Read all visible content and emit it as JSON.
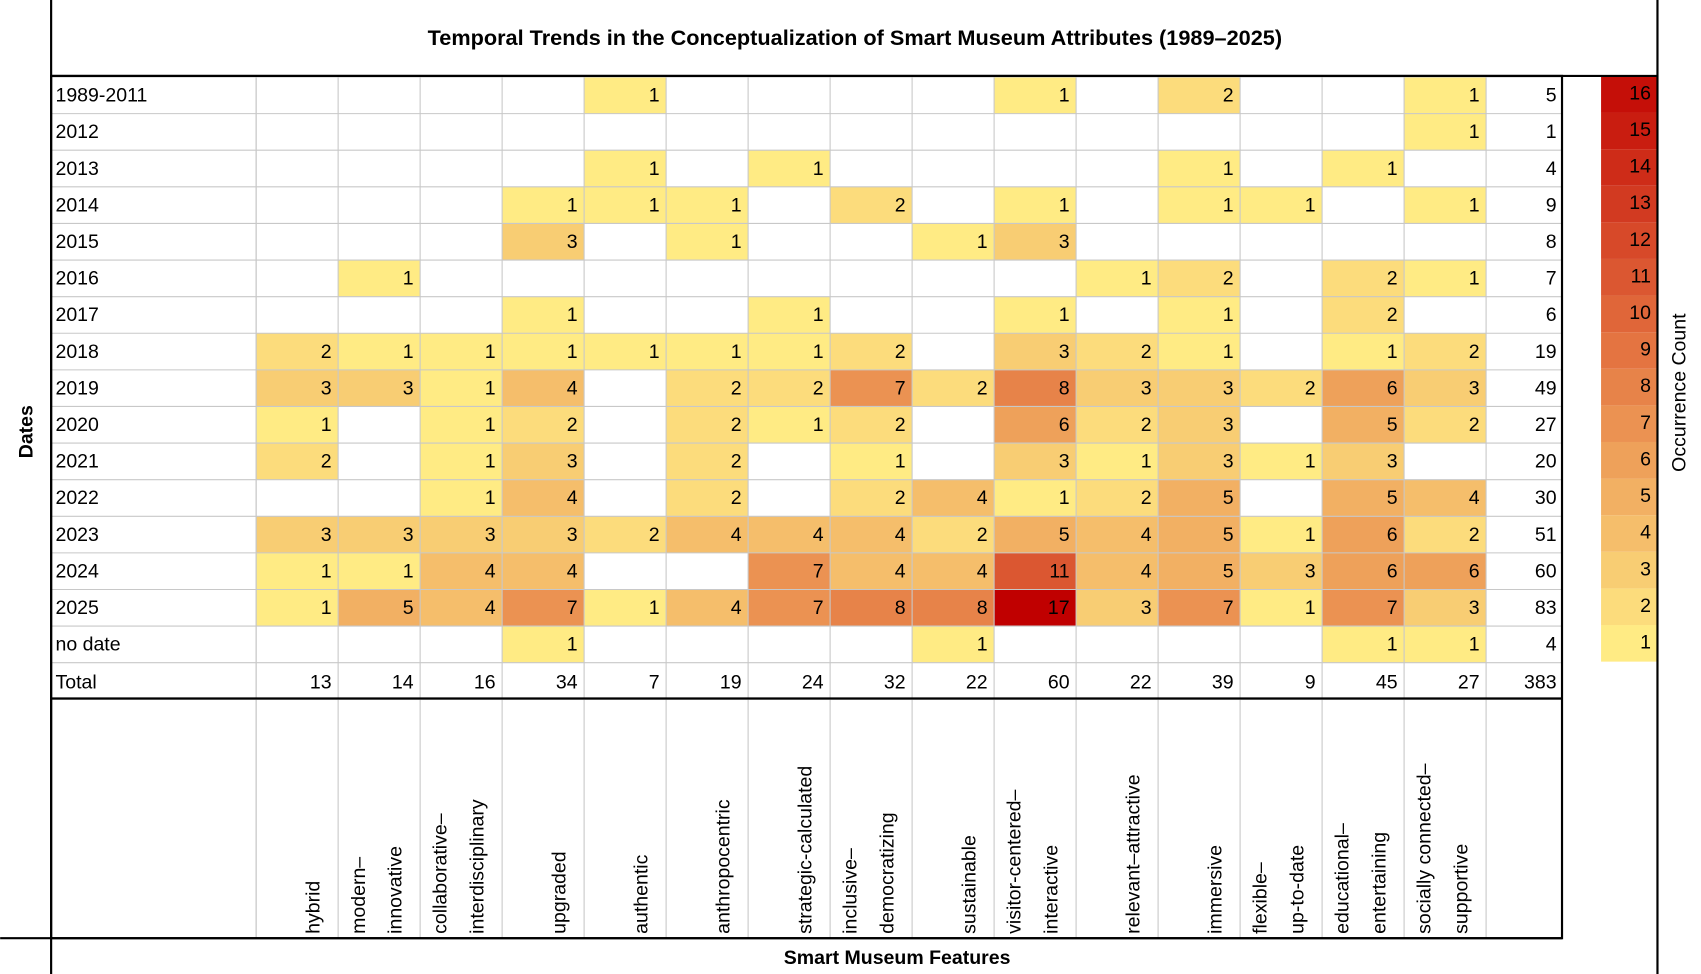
{
  "chart_data": {
    "type": "heatmap",
    "title": "Temporal Trends in the Conceptualization of Smart Museum Attributes (1989–2025)",
    "y_label": "Dates",
    "x_label": "Smart Museum Features",
    "colorbar_label": "Occurrence Count",
    "total_label": "Total",
    "rows": [
      "1989-2011",
      "2012",
      "2013",
      "2014",
      "2015",
      "2016",
      "2017",
      "2018",
      "2019",
      "2020",
      "2021",
      "2022",
      "2023",
      "2024",
      "2025",
      "no date"
    ],
    "columns": [
      [
        "hybrid"
      ],
      [
        "modern–",
        "innovative"
      ],
      [
        "collaborative–",
        "interdisciplinary"
      ],
      [
        "upgraded"
      ],
      [
        "authentic"
      ],
      [
        "anthropocentric"
      ],
      [
        "strategic-calculated"
      ],
      [
        "inclusive–",
        "democratizing"
      ],
      [
        "sustainable"
      ],
      [
        "visitor-centered–",
        "interactive"
      ],
      [
        "relevant–attractive"
      ],
      [
        "immersive"
      ],
      [
        "flexible–",
        "up-to-date"
      ],
      [
        "educational–",
        "entertaining"
      ],
      [
        "socially connected–",
        "supportive"
      ]
    ],
    "values": [
      [
        null,
        null,
        null,
        null,
        1,
        null,
        null,
        null,
        null,
        1,
        null,
        2,
        null,
        null,
        1
      ],
      [
        null,
        null,
        null,
        null,
        null,
        null,
        null,
        null,
        null,
        null,
        null,
        null,
        null,
        null,
        1
      ],
      [
        null,
        null,
        null,
        null,
        1,
        null,
        1,
        null,
        null,
        null,
        null,
        1,
        null,
        1,
        null
      ],
      [
        null,
        null,
        null,
        1,
        1,
        1,
        null,
        2,
        null,
        1,
        null,
        1,
        1,
        null,
        1
      ],
      [
        null,
        null,
        null,
        3,
        null,
        1,
        null,
        null,
        1,
        3,
        null,
        null,
        null,
        null,
        null
      ],
      [
        null,
        1,
        null,
        null,
        null,
        null,
        null,
        null,
        null,
        null,
        1,
        2,
        null,
        2,
        1
      ],
      [
        null,
        null,
        null,
        1,
        null,
        null,
        1,
        null,
        null,
        1,
        null,
        1,
        null,
        2,
        null
      ],
      [
        2,
        1,
        1,
        1,
        1,
        1,
        1,
        2,
        null,
        3,
        2,
        1,
        null,
        1,
        2
      ],
      [
        3,
        3,
        1,
        4,
        null,
        2,
        2,
        7,
        2,
        8,
        3,
        3,
        2,
        6,
        3
      ],
      [
        1,
        null,
        1,
        2,
        null,
        2,
        1,
        2,
        null,
        6,
        2,
        3,
        null,
        5,
        2
      ],
      [
        2,
        null,
        1,
        3,
        null,
        2,
        null,
        1,
        null,
        3,
        1,
        3,
        1,
        3,
        null
      ],
      [
        null,
        null,
        1,
        4,
        null,
        2,
        null,
        2,
        4,
        1,
        2,
        5,
        null,
        5,
        4
      ],
      [
        3,
        3,
        3,
        3,
        2,
        4,
        4,
        4,
        2,
        5,
        4,
        5,
        1,
        6,
        2
      ],
      [
        1,
        1,
        4,
        4,
        null,
        null,
        7,
        4,
        4,
        11,
        4,
        5,
        3,
        6,
        6
      ],
      [
        1,
        5,
        4,
        7,
        1,
        4,
        7,
        8,
        8,
        17,
        3,
        7,
        1,
        7,
        3
      ],
      [
        null,
        null,
        null,
        1,
        null,
        null,
        null,
        null,
        1,
        null,
        null,
        null,
        null,
        1,
        1
      ]
    ],
    "row_totals": [
      5,
      1,
      4,
      9,
      8,
      7,
      6,
      19,
      49,
      27,
      20,
      30,
      51,
      60,
      83,
      4
    ],
    "column_totals": [
      13,
      14,
      16,
      34,
      7,
      19,
      24,
      32,
      22,
      60,
      22,
      39,
      9,
      45,
      27
    ],
    "grand_total": 383,
    "colors": [
      "#FFEB84",
      "#E47441",
      "#C00000"
    ],
    "zlim": [
      1,
      17
    ],
    "clim": [
      0.5,
      16.5
    ],
    "cticks": [
      1,
      2,
      3,
      4,
      5,
      6,
      7,
      8,
      9,
      10,
      11,
      12,
      13,
      14,
      15,
      16
    ]
  }
}
